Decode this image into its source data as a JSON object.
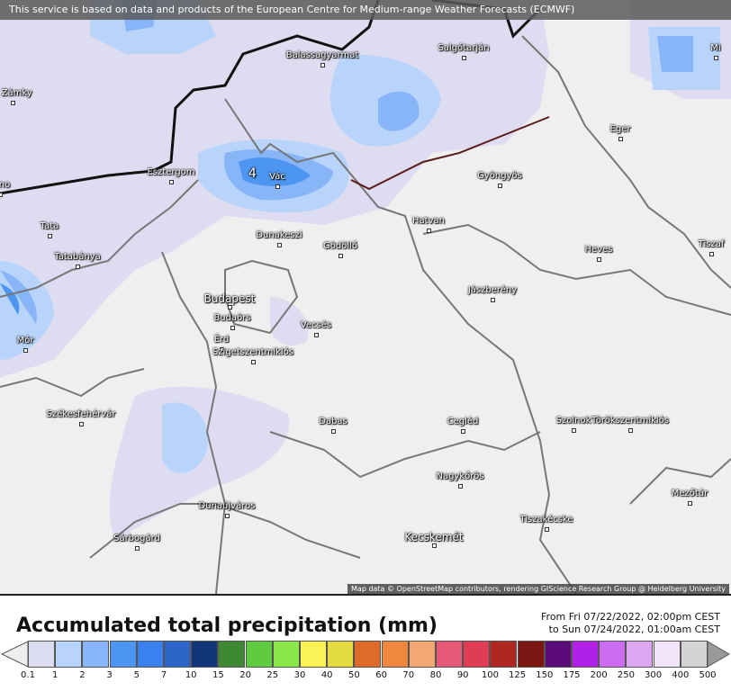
{
  "banner": "This service is based on data and products of the European Centre for Medium-range Weather Forecasts (ECMWF)",
  "attribution": "Map data © OpenStreetMap contributors, rendering GIScience Research Group @ Heidelberg University",
  "max_value_label": "4",
  "cities": [
    {
      "name": "Balassagyarmat"
    },
    {
      "name": "Salgótarján"
    },
    {
      "name": "é Zámky"
    },
    {
      "name": "Eger"
    },
    {
      "name": "Esztergom"
    },
    {
      "name": "Vác"
    },
    {
      "name": "Gyöngyös"
    },
    {
      "name": "árno"
    },
    {
      "name": "Tata"
    },
    {
      "name": "Hatvan"
    },
    {
      "name": "Dunakeszi"
    },
    {
      "name": "Gödöllő"
    },
    {
      "name": "Heves"
    },
    {
      "name": "Tiszaf"
    },
    {
      "name": "Tatabánya"
    },
    {
      "name": "Jászberény"
    },
    {
      "name": "Budapest"
    },
    {
      "name": "Budaörs"
    },
    {
      "name": "Vecsés"
    },
    {
      "name": "Mór"
    },
    {
      "name": "Érd"
    },
    {
      "name": "Szigetszentmiklós"
    },
    {
      "name": "Székesfehérvár"
    },
    {
      "name": "Dabas"
    },
    {
      "name": "Cegléd"
    },
    {
      "name": "Szolnok"
    },
    {
      "name": "Törökszentmiklós"
    },
    {
      "name": "Nagykőrös"
    },
    {
      "name": "Mezőtúr"
    },
    {
      "name": "Dunaújváros"
    },
    {
      "name": "Tiszakécske"
    },
    {
      "name": "Sárbogárd"
    },
    {
      "name": "Kecskemét"
    },
    {
      "name": "Mi"
    }
  ],
  "legend": {
    "title": "Accumulated total precipitation (mm)",
    "period_from": "From Fri 07/22/2022, 02:00pm CEST",
    "period_to": "to Sun 07/24/2022, 01:00am CEST",
    "labels": [
      "0.1",
      "1",
      "2",
      "3",
      "5",
      "7",
      "10",
      "15",
      "20",
      "25",
      "30",
      "40",
      "50",
      "60",
      "70",
      "80",
      "90",
      "100",
      "125",
      "150",
      "175",
      "200",
      "250",
      "300",
      "400",
      "500"
    ],
    "colors": [
      "#dcdcf0",
      "#b8d4fa",
      "#87b5f8",
      "#4c95f0",
      "#3a80f0",
      "#2e65c8",
      "#12357a",
      "#3e8a32",
      "#5fcb3e",
      "#8ae84a",
      "#fbf256",
      "#e5dc44",
      "#e06a28",
      "#ee883e",
      "#f2a872",
      "#e65a78",
      "#e03c56",
      "#b02620",
      "#7c1612",
      "#5c0c78",
      "#b020e8",
      "#cc6cf0",
      "#dca6f0",
      "#f2e4f8",
      "#d4d4d4"
    ]
  }
}
